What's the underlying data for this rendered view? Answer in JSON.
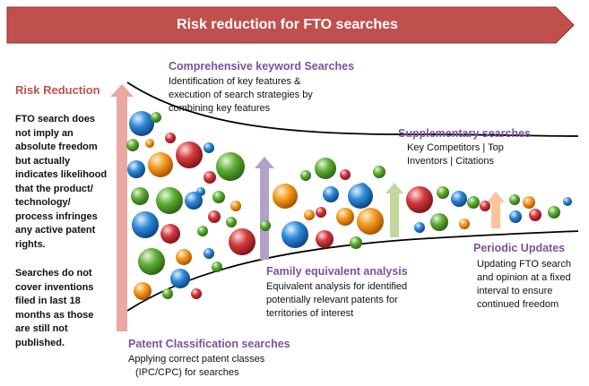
{
  "banner": {
    "title": "Risk reduction for FTO searches",
    "color": "#c0504d"
  },
  "left_panel": {
    "heading": "Risk Reduction",
    "paragraph1": [
      "FTO search does",
      "not imply an",
      "absolute freedom",
      "but actually",
      "indicates likelihood",
      "that the product/",
      "technology/",
      "process infringes",
      "any active patent",
      "rights."
    ],
    "paragraph2": [
      "Searches do not",
      "cover inventions",
      "filed in last 18",
      "months as those",
      "are still not",
      "published."
    ]
  },
  "stages": {
    "keyword": {
      "heading": "Comprehensive keyword Searches",
      "lines": [
        "Identification of key features &",
        "execution of search strategies by",
        "combining key features"
      ]
    },
    "classification": {
      "heading": "Patent Classification searches",
      "lines": [
        "Applying correct patent classes",
        "(IPC/CPC) for searches"
      ]
    },
    "family": {
      "heading": "Family equivalent analysis",
      "lines": [
        "Equivalent analysis for identified",
        "potentially relevant patents for",
        "territories of interest"
      ]
    },
    "supplementary": {
      "heading": "Supplementary searches",
      "lines": [
        "Key Competitors | Top",
        "Inventors | Citations"
      ]
    },
    "periodic": {
      "heading": "Periodic Updates",
      "lines": [
        "Updating FTO search",
        "and opinion at a fixed",
        "interval to ensure",
        "continued freedom"
      ]
    }
  },
  "colors": {
    "heading_purple": "#7b52a0",
    "heading_red": "#c0504d",
    "arrow_red": "#e8a9a3",
    "arrow_purple": "#b3a2c7",
    "arrow_green": "#c3d69b",
    "arrow_orange": "#f9c49b",
    "bubble_blue": "#1f77c9",
    "bubble_orange": "#f07f12",
    "bubble_green": "#55a02c",
    "bubble_red": "#c0282d"
  }
}
